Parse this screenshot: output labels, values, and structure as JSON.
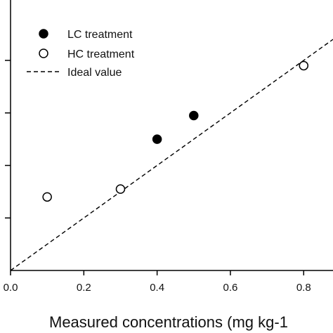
{
  "chart_data": {
    "type": "scatter",
    "xlabel": "Measured concentrations (mg kg-1",
    "xlim": [
      0.0,
      0.88
    ],
    "ylim": [
      0.0,
      1.03
    ],
    "x_ticks": [
      "0.0",
      "0.2",
      "0.4",
      "0.6",
      "0.8"
    ],
    "x_tick_values": [
      0.0,
      0.2,
      0.4,
      0.6,
      0.8
    ],
    "y_tick_values": [
      0.2,
      0.4,
      0.6,
      0.8
    ],
    "grid": false,
    "legend_position": "top-left",
    "series": [
      {
        "name": "LC treatment",
        "marker": "filled-circle",
        "color": "#000000",
        "points": [
          {
            "x": 0.4,
            "y": 0.5
          },
          {
            "x": 0.5,
            "y": 0.59
          }
        ]
      },
      {
        "name": "HC treatment",
        "marker": "open-circle",
        "color": "#000000",
        "points": [
          {
            "x": 0.1,
            "y": 0.28
          },
          {
            "x": 0.3,
            "y": 0.31
          },
          {
            "x": 0.8,
            "y": 0.78
          }
        ]
      }
    ],
    "reference_line": {
      "name": "Ideal value",
      "style": "dashed",
      "color": "#000000",
      "from": [
        0.0,
        0.0
      ],
      "to": [
        0.88,
        0.88
      ]
    }
  }
}
